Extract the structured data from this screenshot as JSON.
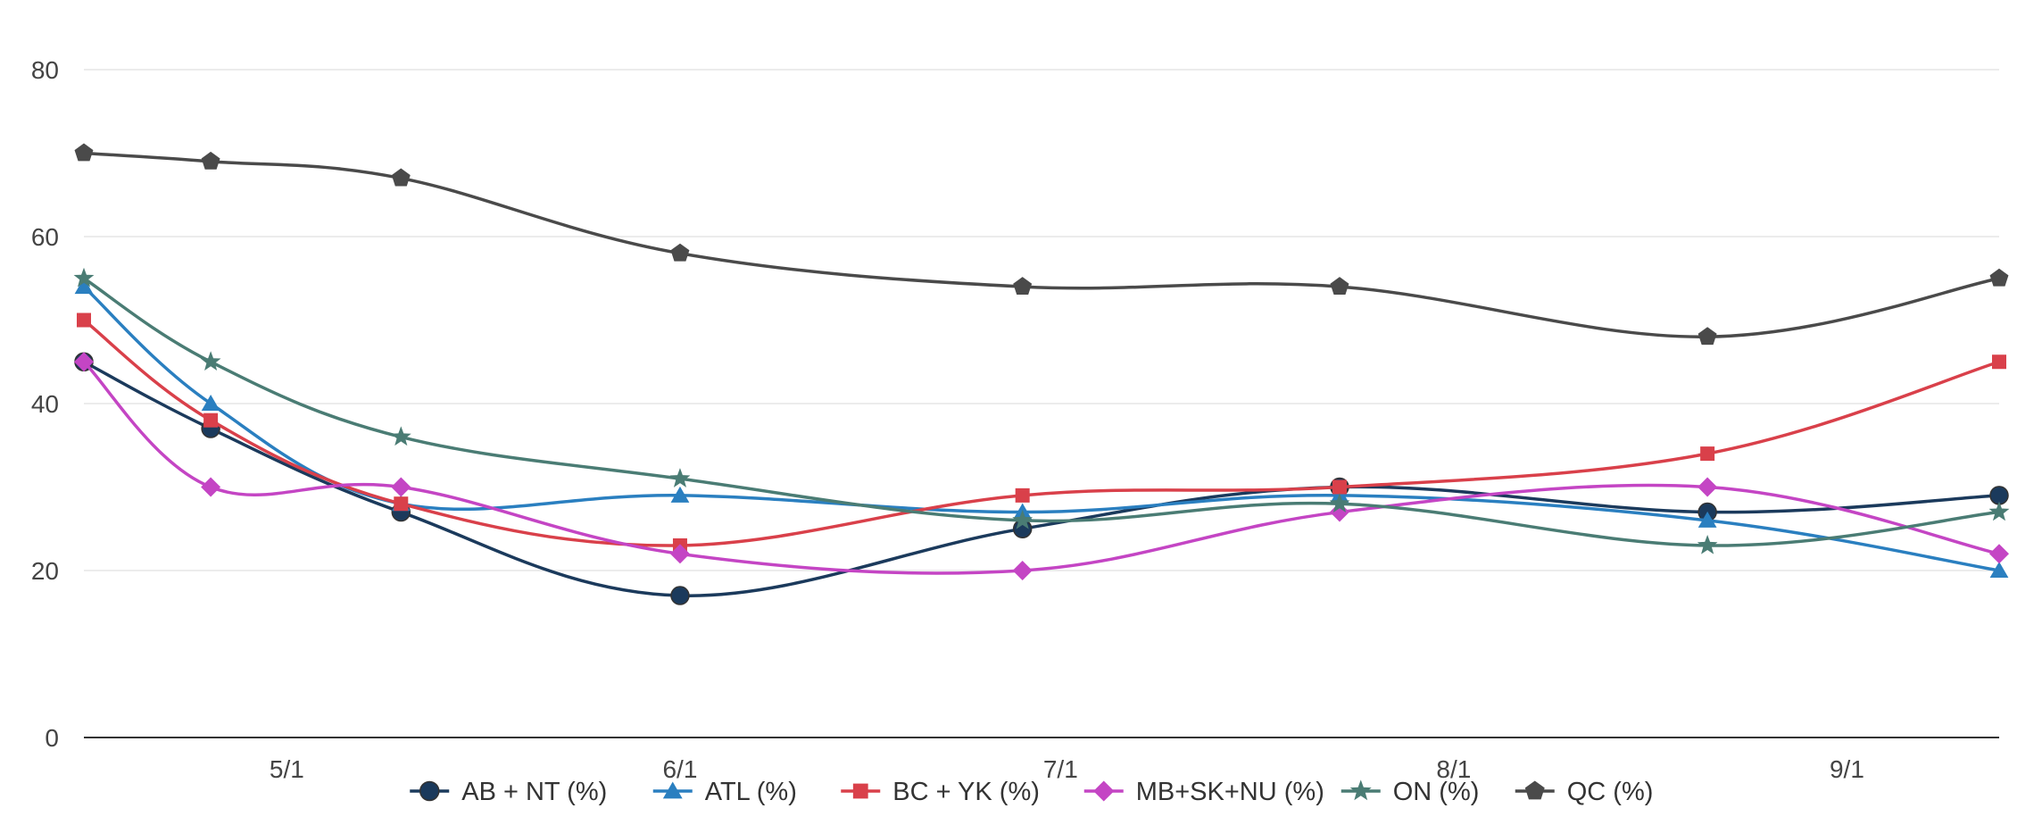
{
  "chart_data": {
    "type": "line",
    "title": "",
    "xlabel": "",
    "ylabel": "",
    "ylim": [
      0,
      80
    ],
    "y_ticks": [
      "0",
      "20",
      "40",
      "60",
      "80"
    ],
    "x_tick_labels": [
      "5/1",
      "6/1",
      "7/1",
      "8/1",
      "9/1"
    ],
    "grid": "horizontal",
    "legend_position": "bottom",
    "x": [
      "2020-04-15",
      "2020-04-25",
      "2020-05-10",
      "2020-06-01",
      "2020-06-28",
      "2020-07-23",
      "2020-08-21",
      "2020-09-13"
    ],
    "series": [
      {
        "name": "AB + NT (%)",
        "color": "#1b3a5c",
        "marker": "circle",
        "values": [
          45,
          37,
          27,
          17,
          25,
          30,
          27,
          29
        ]
      },
      {
        "name": "ATL (%)",
        "color": "#2a7fc0",
        "marker": "triangle",
        "values": [
          54,
          40,
          28,
          29,
          27,
          29,
          26,
          20
        ]
      },
      {
        "name": "BC + YK (%)",
        "color": "#d9404a",
        "marker": "square",
        "values": [
          50,
          38,
          28,
          23,
          29,
          30,
          34,
          45
        ]
      },
      {
        "name": "MB+SK+NU (%)",
        "color": "#c445c4",
        "marker": "diamond",
        "values": [
          45,
          30,
          30,
          22,
          20,
          27,
          30,
          22
        ]
      },
      {
        "name": "ON (%)",
        "color": "#4a7c74",
        "marker": "star",
        "values": [
          55,
          45,
          36,
          31,
          26,
          28,
          23,
          27
        ]
      },
      {
        "name": "QC (%)",
        "color": "#4a4a4a",
        "marker": "pentagon",
        "values": [
          70,
          69,
          67,
          58,
          54,
          54,
          48,
          55
        ]
      }
    ]
  }
}
